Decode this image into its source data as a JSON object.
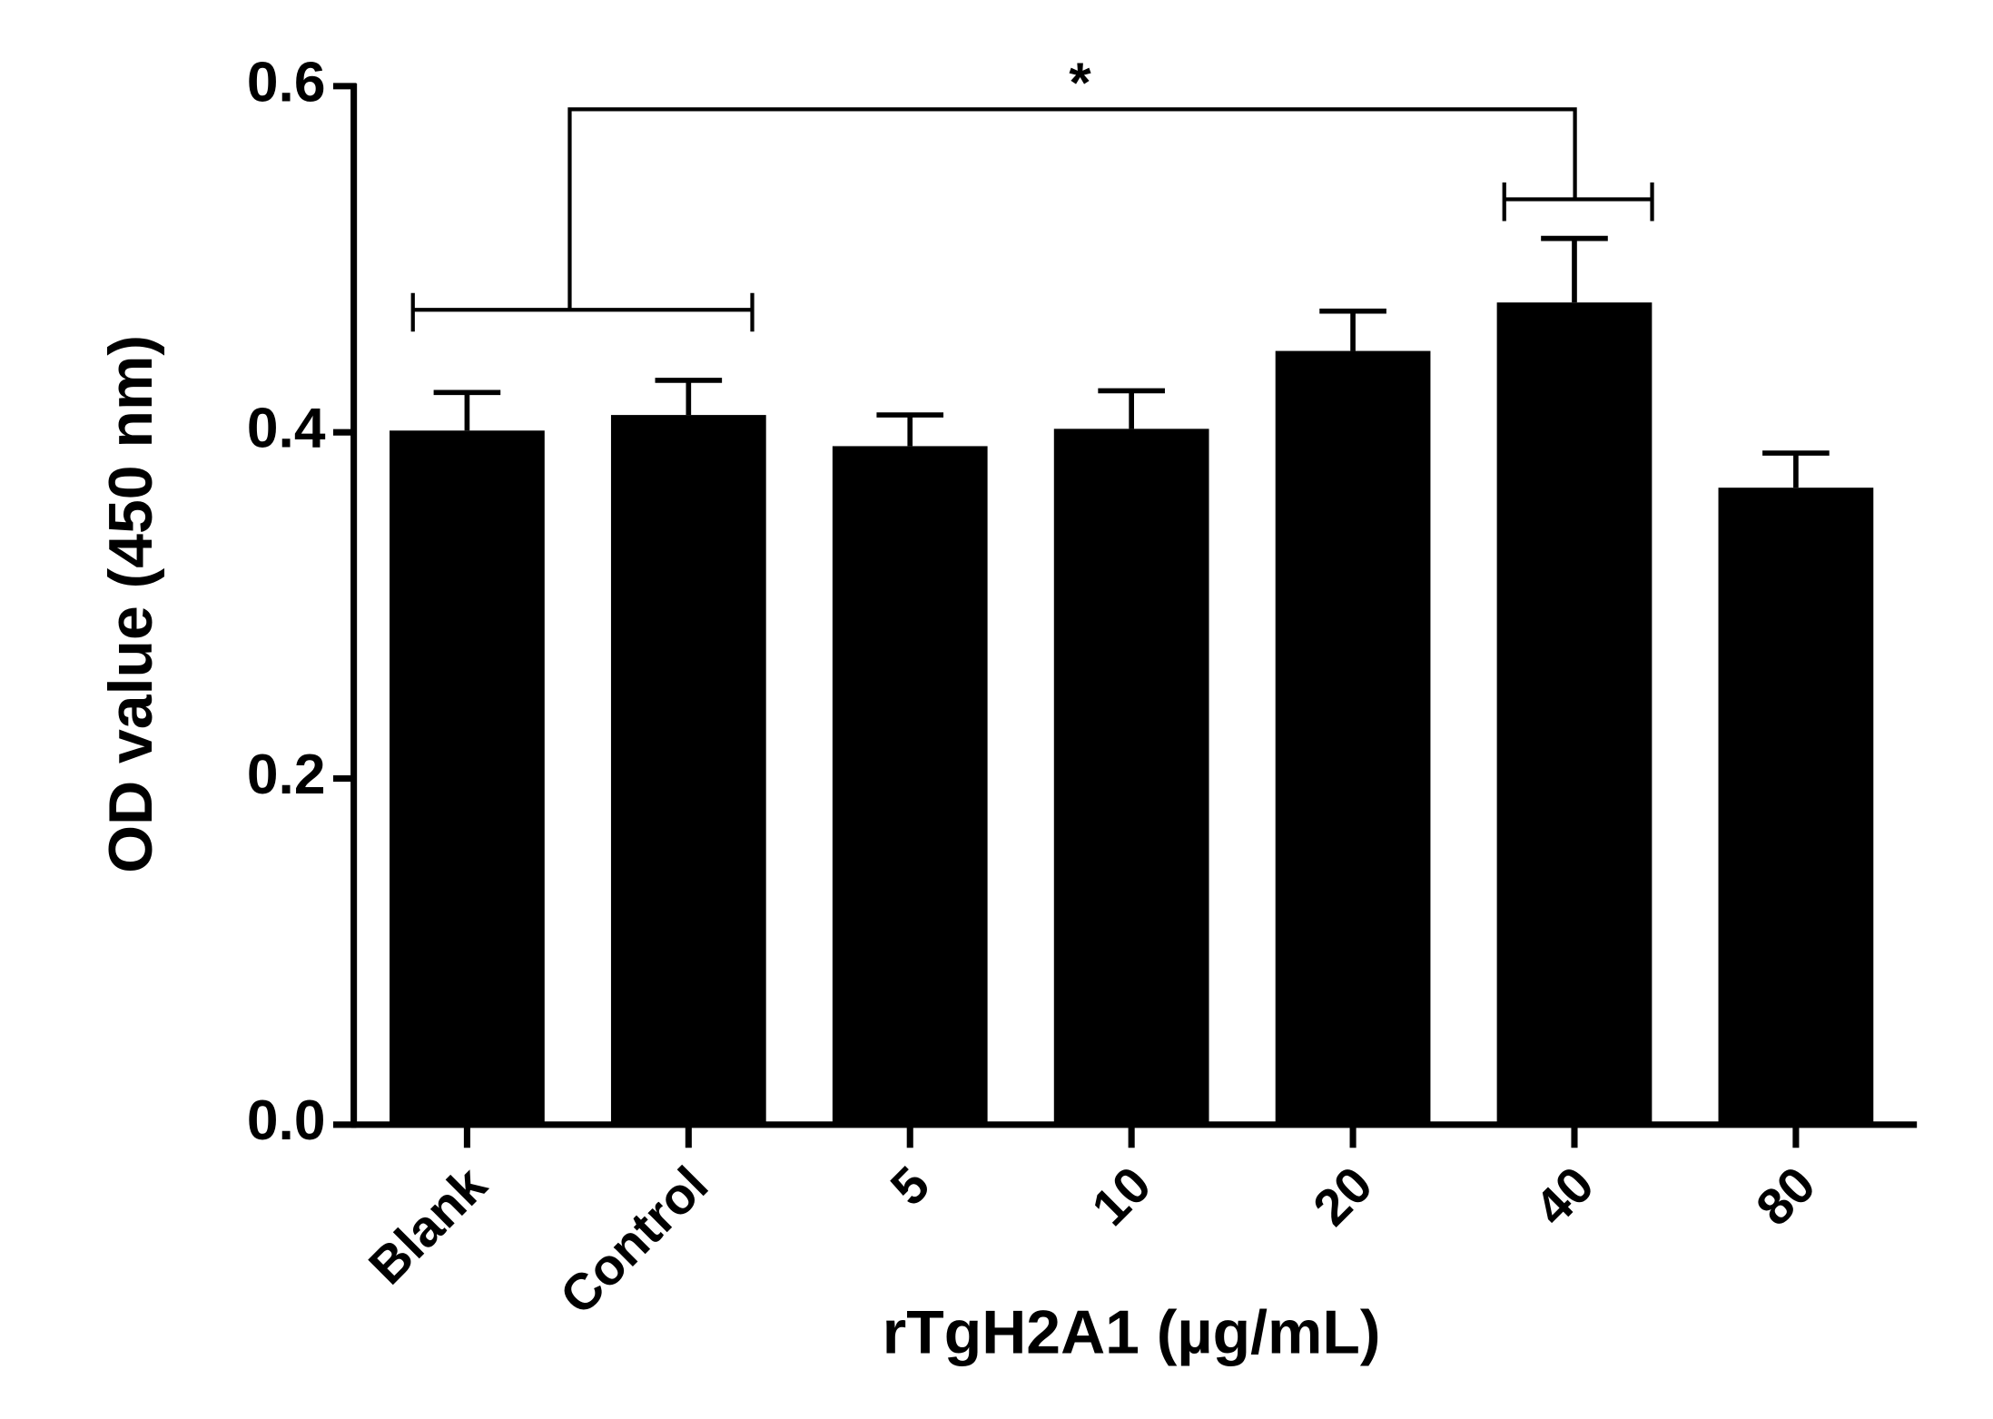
{
  "chart_data": {
    "type": "bar",
    "y_label": "OD value (450 nm)",
    "x_label": "rTgH2A1 (µg/mL)",
    "categories": [
      "Blank",
      "Control",
      "5",
      "10",
      "20",
      "40",
      "80"
    ],
    "values": [
      0.401,
      0.41,
      0.392,
      0.402,
      0.447,
      0.475,
      0.368
    ],
    "errors": [
      0.022,
      0.02,
      0.018,
      0.022,
      0.023,
      0.037,
      0.02
    ],
    "color": "#000000",
    "ylim": [
      0,
      0.6
    ],
    "yticks": [
      {
        "value": 0,
        "label": "0.0"
      },
      0.2,
      0.4,
      0.6
    ],
    "annotations": [
      {
        "text": "*"
      }
    ]
  }
}
